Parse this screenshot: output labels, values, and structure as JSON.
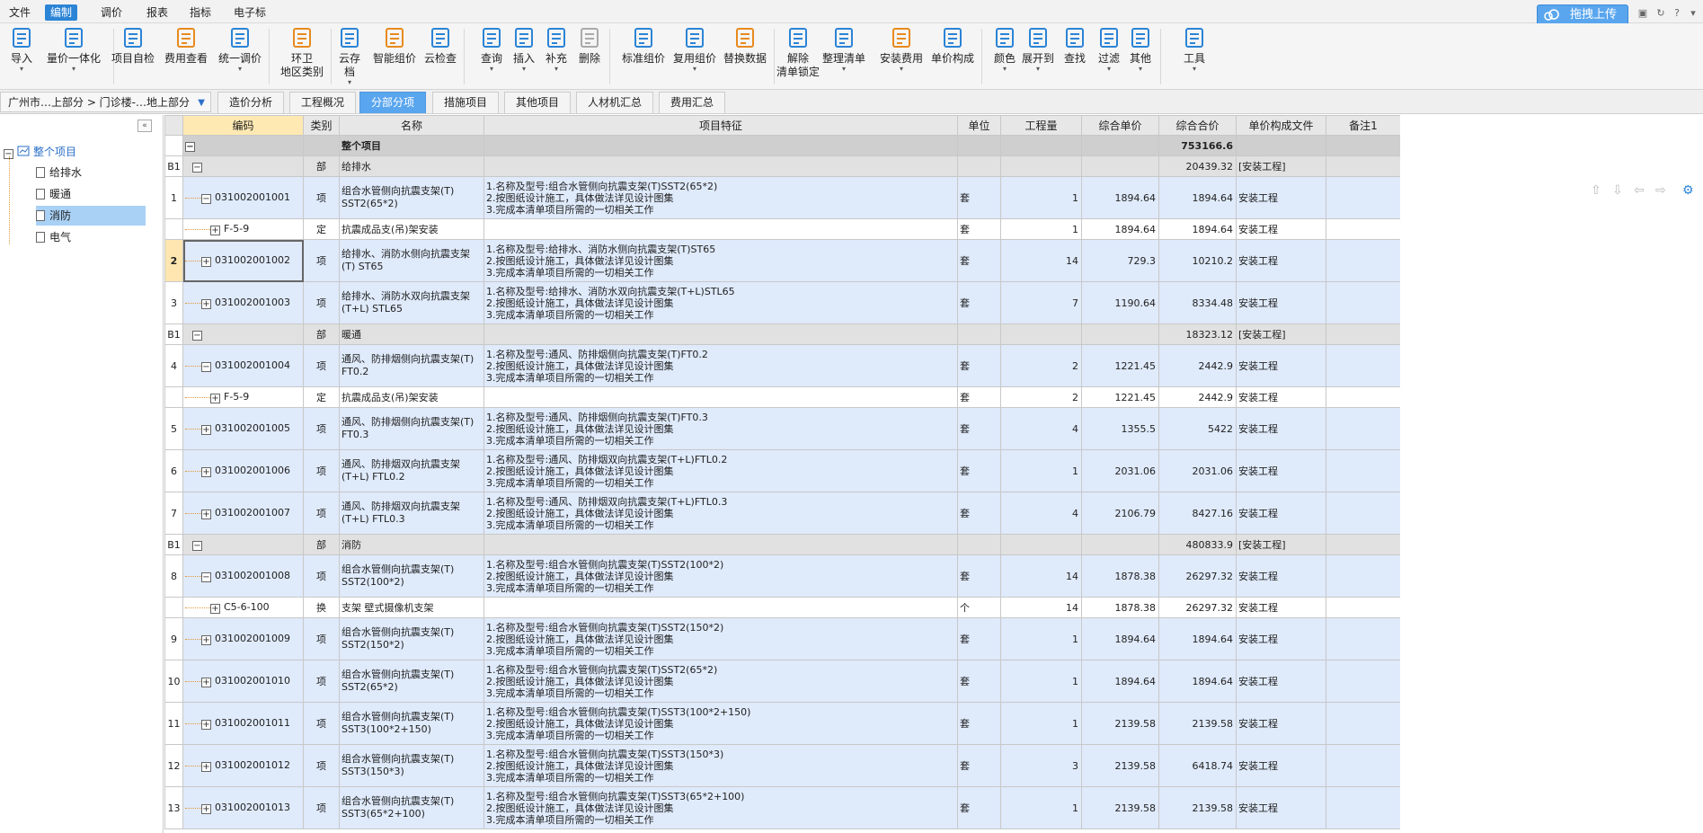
{
  "menubar": {
    "items": [
      "文件",
      "编制",
      "调价",
      "报表",
      "指标",
      "电子标"
    ],
    "active_index": 1,
    "cloud_label": "拖拽上传"
  },
  "toolbar": {
    "buttons": [
      {
        "l1": "导入",
        "l2": "",
        "arrow": true,
        "icon": "import-icon"
      },
      {
        "l1": "量价一体化",
        "l2": "",
        "arrow": true,
        "icon": "price-integration-icon"
      },
      {
        "l1": "项目自检",
        "l2": "",
        "arrow": false,
        "icon": "self-check-icon"
      },
      {
        "l1": "费用查看",
        "l2": "",
        "arrow": false,
        "icon": "cost-view-icon"
      },
      {
        "l1": "统一调价",
        "l2": "",
        "arrow": true,
        "icon": "unify-price-icon"
      },
      {
        "l1": "环卫",
        "l2": "地区类别",
        "arrow": false,
        "icon": "region-icon"
      },
      {
        "l1": "云存档",
        "l2": "",
        "arrow": true,
        "icon": "cloud-save-icon"
      },
      {
        "l1": "智能组价",
        "l2": "",
        "arrow": false,
        "icon": "smart-price-icon"
      },
      {
        "l1": "云检查",
        "l2": "",
        "arrow": false,
        "icon": "cloud-check-icon"
      },
      {
        "l1": "查询",
        "l2": "",
        "arrow": true,
        "icon": "query-icon"
      },
      {
        "l1": "插入",
        "l2": "",
        "arrow": true,
        "icon": "insert-icon"
      },
      {
        "l1": "补充",
        "l2": "",
        "arrow": true,
        "icon": "supplement-icon"
      },
      {
        "l1": "删除",
        "l2": "",
        "arrow": false,
        "icon": "delete-icon"
      },
      {
        "l1": "标准组价",
        "l2": "",
        "arrow": false,
        "icon": "standard-price-icon"
      },
      {
        "l1": "复用组价",
        "l2": "",
        "arrow": true,
        "icon": "reuse-price-icon"
      },
      {
        "l1": "替换数据",
        "l2": "",
        "arrow": false,
        "icon": "replace-data-icon"
      },
      {
        "l1": "解除",
        "l2": "清单锁定",
        "arrow": false,
        "icon": "unlock-icon"
      },
      {
        "l1": "整理清单",
        "l2": "",
        "arrow": true,
        "icon": "organize-list-icon"
      },
      {
        "l1": "安装费用",
        "l2": "",
        "arrow": true,
        "icon": "install-cost-icon"
      },
      {
        "l1": "单价构成",
        "l2": "",
        "arrow": false,
        "icon": "unit-price-icon"
      },
      {
        "l1": "颜色",
        "l2": "",
        "arrow": true,
        "icon": "color-icon"
      },
      {
        "l1": "展开到",
        "l2": "",
        "arrow": true,
        "icon": "expand-icon"
      },
      {
        "l1": "查找",
        "l2": "",
        "arrow": false,
        "icon": "find-icon"
      },
      {
        "l1": "过滤",
        "l2": "",
        "arrow": true,
        "icon": "filter-icon"
      },
      {
        "l1": "其他",
        "l2": "",
        "arrow": true,
        "icon": "other-icon"
      },
      {
        "l1": "工具",
        "l2": "",
        "arrow": true,
        "icon": "tools-icon"
      }
    ]
  },
  "tabbar": {
    "breadcrumb": "广州市…上部分 > 门诊楼-…地上部分",
    "tabs": [
      "造价分析",
      "工程概况",
      "分部分项",
      "措施项目",
      "其他项目",
      "人材机汇总",
      "费用汇总"
    ],
    "active_index": 2
  },
  "tree": {
    "root": "整个项目",
    "children": [
      "给排水",
      "暖通",
      "消防",
      "电气"
    ],
    "selected_index": 2
  },
  "table": {
    "headers": [
      "",
      "编码",
      "类别",
      "名称",
      "项目特征",
      "单位",
      "工程量",
      "综合单价",
      "综合合价",
      "单价构成文件",
      "备注1"
    ],
    "rows": [
      {
        "type": "root",
        "idx": "",
        "code": "",
        "cat": "",
        "name": "整个项目",
        "feat": [],
        "unit": "",
        "qty": "",
        "price": "",
        "total": "753166.6",
        "file": ""
      },
      {
        "type": "sec",
        "idx": "B1",
        "code": "",
        "cat": "部",
        "name": "给排水",
        "feat": [],
        "unit": "",
        "qty": "",
        "price": "",
        "total": "20439.32",
        "file": "[安装工程]"
      },
      {
        "type": "item",
        "idx": "1",
        "code": "031002001001",
        "exp": "−",
        "cat": "项",
        "name": "组合水管侧向抗震支架(T) SST2(65*2)",
        "feat": [
          "1.名称及型号:组合水管侧向抗震支架(T)SST2(65*2)",
          "2.按图纸设计施工，具体做法详见设计图集",
          "3.完成本清单项目所需的一切相关工作"
        ],
        "unit": "套",
        "qty": "1",
        "price": "1894.64",
        "total": "1894.64",
        "file": "安装工程"
      },
      {
        "type": "sub",
        "idx": "",
        "code": "F-5-9",
        "cat": "定",
        "name": "抗震成品支(吊)架安装",
        "feat": [],
        "unit": "套",
        "qty": "1",
        "price": "1894.64",
        "total": "1894.64",
        "file": "安装工程"
      },
      {
        "type": "item",
        "idx": "2",
        "code": "031002001002",
        "exp": "+",
        "cat": "项",
        "name": "给排水、消防水侧向抗震支架(T) ST65",
        "feat": [
          "1.名称及型号:给排水、消防水侧向抗震支架(T)ST65",
          "2.按图纸设计施工，具体做法详见设计图集",
          "3.完成本清单项目所需的一切相关工作"
        ],
        "unit": "套",
        "qty": "14",
        "price": "729.3",
        "total": "10210.2",
        "file": "安装工程",
        "sel": true
      },
      {
        "type": "item",
        "idx": "3",
        "code": "031002001003",
        "exp": "+",
        "cat": "项",
        "name": "给排水、消防水双向抗震支架(T+L) STL65",
        "feat": [
          "1.名称及型号:给排水、消防水双向抗震支架(T+L)STL65",
          "2.按图纸设计施工，具体做法详见设计图集",
          "3.完成本清单项目所需的一切相关工作"
        ],
        "unit": "套",
        "qty": "7",
        "price": "1190.64",
        "total": "8334.48",
        "file": "安装工程"
      },
      {
        "type": "sec",
        "idx": "B1",
        "code": "",
        "cat": "部",
        "name": "暖通",
        "feat": [],
        "unit": "",
        "qty": "",
        "price": "",
        "total": "18323.12",
        "file": "[安装工程]"
      },
      {
        "type": "item",
        "idx": "4",
        "code": "031002001004",
        "exp": "−",
        "cat": "项",
        "name": "通风、防排烟侧向抗震支架(T) FT0.2",
        "feat": [
          "1.名称及型号:通风、防排烟侧向抗震支架(T)FT0.2",
          "2.按图纸设计施工，具体做法详见设计图集",
          "3.完成本清单项目所需的一切相关工作"
        ],
        "unit": "套",
        "qty": "2",
        "price": "1221.45",
        "total": "2442.9",
        "file": "安装工程"
      },
      {
        "type": "sub",
        "idx": "",
        "code": "F-5-9",
        "cat": "定",
        "name": "抗震成品支(吊)架安装",
        "feat": [],
        "unit": "套",
        "qty": "2",
        "price": "1221.45",
        "total": "2442.9",
        "file": "安装工程"
      },
      {
        "type": "item",
        "idx": "5",
        "code": "031002001005",
        "exp": "+",
        "cat": "项",
        "name": "通风、防排烟侧向抗震支架(T) FT0.3",
        "feat": [
          "1.名称及型号:通风、防排烟侧向抗震支架(T)FT0.3",
          "2.按图纸设计施工，具体做法详见设计图集",
          "3.完成本清单项目所需的一切相关工作"
        ],
        "unit": "套",
        "qty": "4",
        "price": "1355.5",
        "total": "5422",
        "file": "安装工程"
      },
      {
        "type": "item",
        "idx": "6",
        "code": "031002001006",
        "exp": "+",
        "cat": "项",
        "name": "通风、防排烟双向抗震支架(T+L) FTL0.2",
        "feat": [
          "1.名称及型号:通风、防排烟双向抗震支架(T+L)FTL0.2",
          "2.按图纸设计施工，具体做法详见设计图集",
          "3.完成本清单项目所需的一切相关工作"
        ],
        "unit": "套",
        "qty": "1",
        "price": "2031.06",
        "total": "2031.06",
        "file": "安装工程"
      },
      {
        "type": "item",
        "idx": "7",
        "code": "031002001007",
        "exp": "+",
        "cat": "项",
        "name": "通风、防排烟双向抗震支架(T+L) FTL0.3",
        "feat": [
          "1.名称及型号:通风、防排烟双向抗震支架(T+L)FTL0.3",
          "2.按图纸设计施工，具体做法详见设计图集",
          "3.完成本清单项目所需的一切相关工作"
        ],
        "unit": "套",
        "qty": "4",
        "price": "2106.79",
        "total": "8427.16",
        "file": "安装工程"
      },
      {
        "type": "sec",
        "idx": "B1",
        "code": "",
        "cat": "部",
        "name": "消防",
        "feat": [],
        "unit": "",
        "qty": "",
        "price": "",
        "total": "480833.9",
        "file": "[安装工程]"
      },
      {
        "type": "item",
        "idx": "8",
        "code": "031002001008",
        "exp": "−",
        "cat": "项",
        "name": "组合水管侧向抗震支架(T) SST2(100*2)",
        "feat": [
          "1.名称及型号:组合水管侧向抗震支架(T)SST2(100*2)",
          "2.按图纸设计施工，具体做法详见设计图集",
          "3.完成本清单项目所需的一切相关工作"
        ],
        "unit": "套",
        "qty": "14",
        "price": "1878.38",
        "total": "26297.32",
        "file": "安装工程"
      },
      {
        "type": "sub",
        "idx": "",
        "code": "C5-6-100",
        "cat": "换",
        "name": "支架 壁式摄像机支架",
        "feat": [],
        "unit": "个",
        "qty": "14",
        "price": "1878.38",
        "total": "26297.32",
        "file": "安装工程"
      },
      {
        "type": "item",
        "idx": "9",
        "code": "031002001009",
        "exp": "+",
        "cat": "项",
        "name": "组合水管侧向抗震支架(T) SST2(150*2)",
        "feat": [
          "1.名称及型号:组合水管侧向抗震支架(T)SST2(150*2)",
          "2.按图纸设计施工，具体做法详见设计图集",
          "3.完成本清单项目所需的一切相关工作"
        ],
        "unit": "套",
        "qty": "1",
        "price": "1894.64",
        "total": "1894.64",
        "file": "安装工程"
      },
      {
        "type": "item",
        "idx": "10",
        "code": "031002001010",
        "exp": "+",
        "cat": "项",
        "name": "组合水管侧向抗震支架(T) SST2(65*2)",
        "feat": [
          "1.名称及型号:组合水管侧向抗震支架(T)SST2(65*2)",
          "2.按图纸设计施工，具体做法详见设计图集",
          "3.完成本清单项目所需的一切相关工作"
        ],
        "unit": "套",
        "qty": "1",
        "price": "1894.64",
        "total": "1894.64",
        "file": "安装工程"
      },
      {
        "type": "item",
        "idx": "11",
        "code": "031002001011",
        "exp": "+",
        "cat": "项",
        "name": "组合水管侧向抗震支架(T) SST3(100*2+150)",
        "feat": [
          "1.名称及型号:组合水管侧向抗震支架(T)SST3(100*2+150)",
          "2.按图纸设计施工，具体做法详见设计图集",
          "3.完成本清单项目所需的一切相关工作"
        ],
        "unit": "套",
        "qty": "1",
        "price": "2139.58",
        "total": "2139.58",
        "file": "安装工程"
      },
      {
        "type": "item",
        "idx": "12",
        "code": "031002001012",
        "exp": "+",
        "cat": "项",
        "name": "组合水管侧向抗震支架(T) SST3(150*3)",
        "feat": [
          "1.名称及型号:组合水管侧向抗震支架(T)SST3(150*3)",
          "2.按图纸设计施工，具体做法详见设计图集",
          "3.完成本清单项目所需的一切相关工作"
        ],
        "unit": "套",
        "qty": "3",
        "price": "2139.58",
        "total": "6418.74",
        "file": "安装工程"
      },
      {
        "type": "item",
        "idx": "13",
        "code": "031002001013",
        "exp": "+",
        "cat": "项",
        "name": "组合水管侧向抗震支架(T) SST3(65*2+100)",
        "feat": [
          "1.名称及型号:组合水管侧向抗震支架(T)SST3(65*2+100)",
          "2.按图纸设计施工，具体做法详见设计图集",
          "3.完成本清单项目所需的一切相关工作"
        ],
        "unit": "套",
        "qty": "1",
        "price": "2139.58",
        "total": "2139.58",
        "file": "安装工程"
      }
    ]
  }
}
